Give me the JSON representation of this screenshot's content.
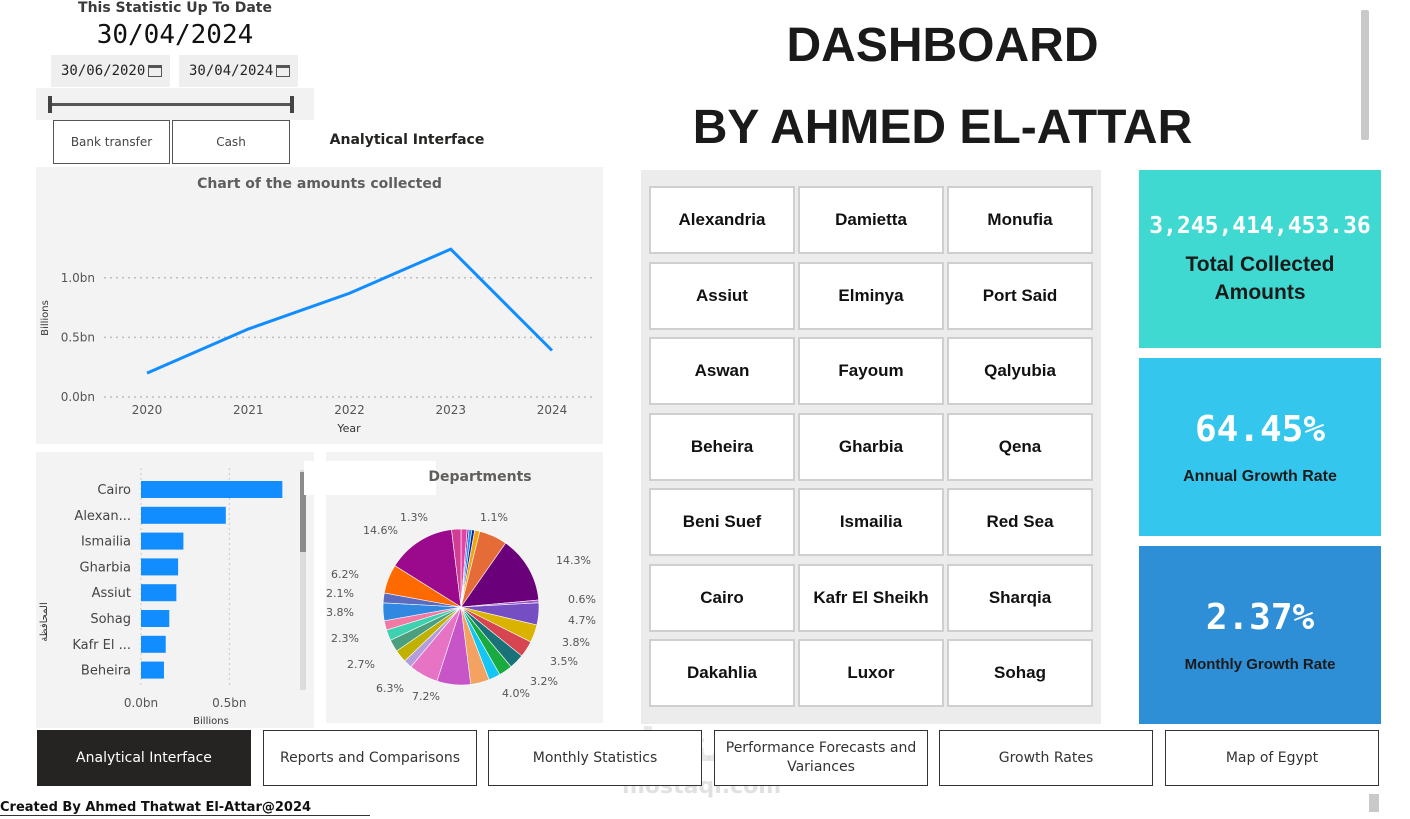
{
  "header": {
    "label": "This Statistic Up To Date",
    "date": "30/04/2024",
    "date_from": "30/06/2020",
    "date_to": "30/04/2024"
  },
  "payment_filter": {
    "bank_transfer": "Bank transfer",
    "cash": "Cash"
  },
  "page_label": "Analytical Interface",
  "title": {
    "line1": "DASHBOARD",
    "line2": "BY AHMED EL-ATTAR"
  },
  "line_chart": {
    "title": "Chart of the amounts collected",
    "ylabel": "Billions",
    "xlabel": "Year",
    "yticks": [
      "0.0bn",
      "0.5bn",
      "1.0bn"
    ],
    "xticks": [
      "2020",
      "2021",
      "2022",
      "2023",
      "2024"
    ]
  },
  "bar_chart": {
    "ylabel": "المحافظة",
    "xlabel": "Billions",
    "xticks": [
      "0.0bn",
      "0.5bn"
    ],
    "categories": [
      "Cairo",
      "Alexan...",
      "Ismailia",
      "Gharbia",
      "Assiut",
      "Sohag",
      "Kafr El ...",
      "Beheira"
    ]
  },
  "pie_chart": {
    "title": "Departments",
    "labels": [
      "1.3%",
      "1.1%",
      "14.3%",
      "0.6%",
      "4.7%",
      "3.8%",
      "3.5%",
      "3.2%",
      "4.0%",
      "7.2%",
      "6.3%",
      "2.7%",
      "2.3%",
      "3.8%",
      "2.1%",
      "6.2%",
      "14.6%"
    ]
  },
  "chart_data": [
    {
      "type": "line",
      "title": "Chart of the amounts collected",
      "xlabel": "Year",
      "ylabel": "Billions",
      "x": [
        2020,
        2021,
        2022,
        2023,
        2024
      ],
      "y": [
        0.2,
        0.57,
        0.87,
        1.24,
        0.39
      ],
      "ylim": [
        0,
        1.3
      ],
      "grid": true,
      "color": "#118DFF"
    },
    {
      "type": "bar",
      "orientation": "horizontal",
      "xlabel": "Billions",
      "ylabel": "المحافظة",
      "categories": [
        "Cairo",
        "Alexan...",
        "Ismailia",
        "Gharbia",
        "Assiut",
        "Sohag",
        "Kafr El ...",
        "Beheira"
      ],
      "values": [
        0.8,
        0.48,
        0.24,
        0.21,
        0.2,
        0.16,
        0.14,
        0.13
      ],
      "xlim": [
        0,
        0.9
      ],
      "color": "#118DFF"
    },
    {
      "type": "pie",
      "title": "Departments",
      "values": [
        1.3,
        0.4,
        0.6,
        0.6,
        1.1,
        6.0,
        14.3,
        0.6,
        4.7,
        3.8,
        3.5,
        3.2,
        2.9,
        2.5,
        4.0,
        7.2,
        6.3,
        1.8,
        2.7,
        2.6,
        2.3,
        2.0,
        3.8,
        2.1,
        6.2,
        14.6,
        2.0
      ],
      "colors": [
        "#E044A7",
        "#8D2AA0",
        "#118DFF",
        "#12239E",
        "#F1A50E",
        "#E66C37",
        "#6B007B",
        "#A05AC9",
        "#744EC2",
        "#D9B300",
        "#D64550",
        "#197278",
        "#1AAB40",
        "#15C6F4",
        "#F4A261",
        "#C755C7",
        "#E773C4",
        "#B39DDB",
        "#C0B000",
        "#4B9F7E",
        "#3DD1B0",
        "#F17AA5",
        "#3088E0",
        "#5B6BC0",
        "#FF6A00",
        "#9B0A8C",
        "#D13D92"
      ]
    }
  ],
  "cities": [
    [
      "Alexandria",
      "Damietta",
      "Monufia"
    ],
    [
      "Assiut",
      "Elminya",
      "Port Said"
    ],
    [
      "Aswan",
      "Fayoum",
      "Qalyubia"
    ],
    [
      "Beheira",
      "Gharbia",
      "Qena"
    ],
    [
      "Beni Suef",
      "Ismailia",
      "Red Sea"
    ],
    [
      "Cairo",
      "Kafr El Sheikh",
      "Sharqia"
    ],
    [
      "Dakahlia",
      "Luxor",
      "Sohag"
    ]
  ],
  "kpis": {
    "total": {
      "value": "3,245,414,453.36",
      "label_line1": "Total Collected",
      "label_line2": "Amounts",
      "color": "#40D9D2"
    },
    "annual": {
      "value": "64.45%",
      "label": "Annual Growth Rate",
      "color": "#35C6EE"
    },
    "monthly": {
      "value": "2.37%",
      "label": "Monthly Growth Rate",
      "color": "#2E8FD6"
    }
  },
  "nav": [
    "Analytical Interface",
    "Reports and Comparisons",
    "Monthly Statistics",
    "Performance Forecasts and Variances",
    "Growth Rates",
    "Map of Egypt"
  ],
  "footer": "Created By Ahmed Thatwat El-Attar@2024",
  "watermark": {
    "arabic": "مستقل",
    "latin": "mostaql.com"
  }
}
